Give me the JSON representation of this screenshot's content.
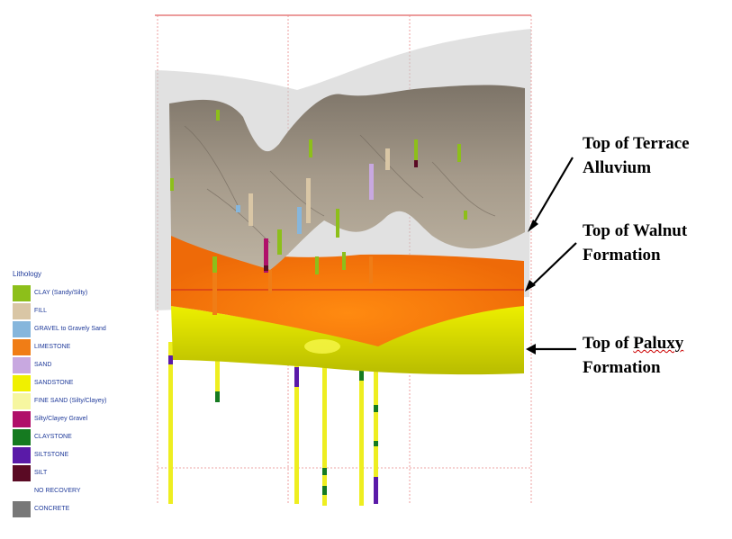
{
  "legend": {
    "title": "Lithology",
    "items": [
      {
        "label": "CLAY (Sandy/Silty)",
        "color": "#8dbf1a"
      },
      {
        "label": "FILL",
        "color": "#d9c6a5"
      },
      {
        "label": "GRAVEL to Gravely Sand",
        "color": "#86b6dc"
      },
      {
        "label": "LIMESTONE",
        "color": "#f07d16"
      },
      {
        "label": "SAND",
        "color": "#c8a8e0"
      },
      {
        "label": "SANDSTONE",
        "color": "#f0f000"
      },
      {
        "label": "FINE SAND (Silty/Clayey)",
        "color": "#f6f6a0"
      },
      {
        "label": "Silty/Clayey Gravel",
        "color": "#b0106a"
      },
      {
        "label": "CLAYSTONE",
        "color": "#157a20"
      },
      {
        "label": "SILTSTONE",
        "color": "#5a1aa8"
      },
      {
        "label": "SILT",
        "color": "#5a0a24"
      },
      {
        "label": "NO RECOVERY",
        "color": "#ffffff"
      },
      {
        "label": "CONCRETE",
        "color": "#787878"
      }
    ]
  },
  "annotations": {
    "terrace": {
      "line1": "Top of Terrace",
      "line2": "Alluvium"
    },
    "walnut": {
      "line1": "Top of Walnut",
      "line2": "Formation"
    },
    "paluxy": {
      "line1_a": "Top of ",
      "line1_b": "Paluxy",
      "line2": "Formation"
    }
  }
}
